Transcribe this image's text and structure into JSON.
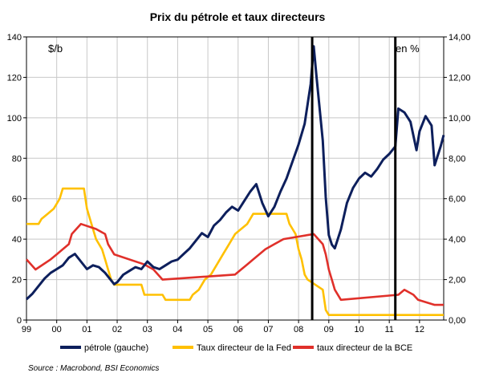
{
  "chart_data": {
    "type": "line",
    "title": "Prix du pétrole et taux directeurs",
    "left_unit_label": "$/b",
    "right_unit_label": "en %",
    "source": "Source : Macrobond, BSI Economics",
    "x_tick_labels": [
      "99",
      "00",
      "01",
      "02",
      "03",
      "04",
      "05",
      "06",
      "07",
      "08",
      "09",
      "10",
      "11",
      "12"
    ],
    "y_left": {
      "ylim": [
        0,
        150
      ],
      "ticks": [
        "0",
        "20",
        "40",
        "60",
        "80",
        "100",
        "120",
        "140"
      ]
    },
    "y_right": {
      "ylim": [
        0,
        14
      ],
      "ticks": [
        "0,00",
        "2,00",
        "4,00",
        "6,00",
        "8,00",
        "10,00",
        "12,00",
        "14,00"
      ]
    },
    "x_range": [
      1999.0,
      2012.8
    ],
    "grid": true,
    "legend_position": "bottom",
    "markers": [
      {
        "x": 2008.45
      },
      {
        "x": 2011.2
      }
    ],
    "series": [
      {
        "name": "pétrole (gauche)",
        "axis": "left",
        "color": "#0d1f5c",
        "x": [
          1999.0,
          1999.2,
          1999.4,
          1999.6,
          1999.8,
          2000.0,
          2000.2,
          2000.4,
          2000.6,
          2000.8,
          2001.0,
          2001.2,
          2001.4,
          2001.6,
          2001.8,
          2001.9,
          2002.0,
          2002.2,
          2002.4,
          2002.6,
          2002.8,
          2003.0,
          2003.2,
          2003.4,
          2003.6,
          2003.8,
          2004.0,
          2004.2,
          2004.4,
          2004.6,
          2004.8,
          2005.0,
          2005.2,
          2005.4,
          2005.6,
          2005.8,
          2006.0,
          2006.2,
          2006.4,
          2006.6,
          2006.8,
          2007.0,
          2007.2,
          2007.4,
          2007.6,
          2007.8,
          2008.0,
          2008.2,
          2008.4,
          2008.5,
          2008.6,
          2008.8,
          2008.9,
          2009.0,
          2009.1,
          2009.2,
          2009.4,
          2009.6,
          2009.8,
          2010.0,
          2010.2,
          2010.4,
          2010.6,
          2010.8,
          2011.0,
          2011.2,
          2011.3,
          2011.5,
          2011.7,
          2011.9,
          2012.0,
          2012.2,
          2012.4,
          2012.5,
          2012.7,
          2012.8
        ],
        "y": [
          11,
          14,
          18,
          22,
          25,
          27,
          29,
          33,
          35,
          31,
          27,
          29,
          28,
          25,
          21,
          19,
          20,
          24,
          26,
          28,
          27,
          31,
          28,
          27,
          29,
          31,
          32,
          35,
          38,
          42,
          46,
          44,
          50,
          53,
          57,
          60,
          58,
          63,
          68,
          72,
          62,
          55,
          60,
          68,
          75,
          84,
          93,
          104,
          125,
          145,
          128,
          95,
          65,
          45,
          40,
          38,
          48,
          62,
          70,
          75,
          78,
          76,
          80,
          85,
          88,
          92,
          112,
          110,
          105,
          90,
          100,
          108,
          103,
          82,
          92,
          98
        ]
      },
      {
        "name": "Taux directeur de la Fed",
        "axis": "right",
        "color": "#ffc000",
        "x": [
          1999.0,
          1999.4,
          1999.5,
          1999.7,
          1999.9,
          2000.0,
          2000.1,
          2000.2,
          2000.4,
          2000.9,
          2001.0,
          2001.1,
          2001.2,
          2001.3,
          2001.4,
          2001.5,
          2001.6,
          2001.7,
          2001.8,
          2001.9,
          2002.0,
          2002.8,
          2002.9,
          2003.5,
          2003.6,
          2004.4,
          2004.5,
          2004.7,
          2004.9,
          2005.1,
          2005.3,
          2005.5,
          2005.7,
          2005.9,
          2006.1,
          2006.3,
          2006.5,
          2007.6,
          2007.7,
          2007.8,
          2007.9,
          2008.0,
          2008.1,
          2008.2,
          2008.3,
          2008.8,
          2008.9,
          2009.0,
          2012.8
        ],
        "y": [
          4.75,
          4.75,
          5.0,
          5.25,
          5.5,
          5.75,
          6.0,
          6.5,
          6.5,
          6.5,
          5.5,
          5.0,
          4.5,
          4.0,
          3.75,
          3.5,
          3.0,
          2.5,
          2.0,
          1.75,
          1.75,
          1.75,
          1.25,
          1.25,
          1.0,
          1.0,
          1.25,
          1.5,
          2.0,
          2.25,
          2.75,
          3.25,
          3.75,
          4.25,
          4.5,
          4.75,
          5.25,
          5.25,
          4.75,
          4.5,
          4.25,
          3.5,
          3.0,
          2.25,
          2.0,
          1.5,
          0.5,
          0.25,
          0.25
        ]
      },
      {
        "name": "taux directeur de la BCE",
        "axis": "right",
        "color": "#e0302a",
        "x": [
          1999.0,
          1999.3,
          1999.8,
          2000.0,
          2000.2,
          2000.4,
          2000.5,
          2000.8,
          2001.3,
          2001.6,
          2001.7,
          2001.9,
          2002.9,
          2003.2,
          2003.5,
          2005.9,
          2006.1,
          2006.3,
          2006.5,
          2006.7,
          2006.9,
          2007.2,
          2007.5,
          2008.5,
          2008.8,
          2008.9,
          2009.0,
          2009.1,
          2009.2,
          2009.4,
          2011.3,
          2011.5,
          2011.8,
          2011.95,
          2012.5,
          2012.8
        ],
        "y": [
          3.0,
          2.5,
          3.0,
          3.25,
          3.5,
          3.75,
          4.25,
          4.75,
          4.5,
          4.25,
          3.75,
          3.25,
          2.75,
          2.5,
          2.0,
          2.25,
          2.5,
          2.75,
          3.0,
          3.25,
          3.5,
          3.75,
          4.0,
          4.25,
          3.75,
          3.25,
          2.5,
          2.0,
          1.5,
          1.0,
          1.25,
          1.5,
          1.25,
          1.0,
          0.75,
          0.75
        ]
      }
    ]
  }
}
